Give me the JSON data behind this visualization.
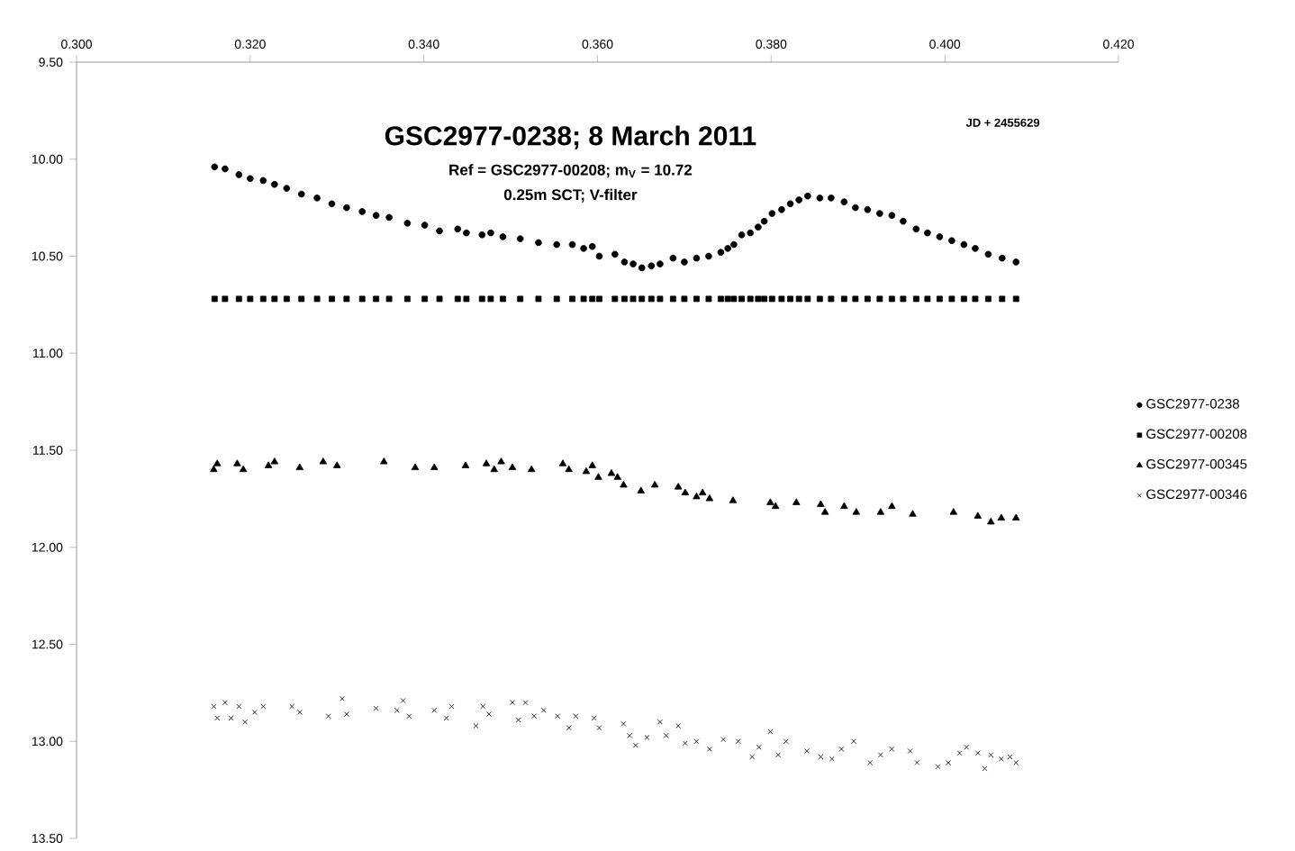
{
  "chart_data": {
    "type": "scatter",
    "title": "GSC2977-0238;  8 March 2011",
    "subtitle": "Ref = GSC2977-00208;  m$_{V}$ = 10.72",
    "annotations": [
      "0.25m SCT;  V-filter"
    ],
    "xlabel": "JD + 2455629",
    "xlim": [
      0.3,
      0.42
    ],
    "xticks": [
      {
        "value": 0.3,
        "label": "0.300"
      },
      {
        "value": 0.32,
        "label": "0.320"
      },
      {
        "value": 0.34,
        "label": "0.340"
      },
      {
        "value": 0.36,
        "label": "0.360"
      },
      {
        "value": 0.38,
        "label": "0.380"
      },
      {
        "value": 0.4,
        "label": "0.400"
      },
      {
        "value": 0.42,
        "label": "0.420"
      }
    ],
    "ylim": [
      13.5,
      9.5
    ],
    "yticks": [
      {
        "value": 9.5,
        "label": "9.50"
      },
      {
        "value": 10,
        "label": "10.00"
      },
      {
        "value": 10.5,
        "label": "10.50"
      },
      {
        "value": 11,
        "label": "11.00"
      },
      {
        "value": 11.5,
        "label": "11.50"
      },
      {
        "value": 12,
        "label": "12.00"
      },
      {
        "value": 12.5,
        "label": "12.50"
      },
      {
        "value": 13,
        "label": "13.00"
      },
      {
        "value": 13.5,
        "label": "13.50"
      }
    ],
    "grid": false,
    "legend": "right",
    "series": [
      {
        "name": "GSC2977-0238",
        "color": "#000000",
        "marker": "circle",
        "x": [
          0.3159,
          0.3171,
          0.3187,
          0.32,
          0.3215,
          0.3228,
          0.3242,
          0.3259,
          0.3277,
          0.3294,
          0.3311,
          0.3329,
          0.3345,
          0.336,
          0.3381,
          0.3401,
          0.3418,
          0.3439,
          0.3449,
          0.3467,
          0.3477,
          0.3491,
          0.3511,
          0.3532,
          0.3553,
          0.3571,
          0.3584,
          0.3594,
          0.3602,
          0.362,
          0.3631,
          0.3641,
          0.3651,
          0.3662,
          0.3672,
          0.3687,
          0.37,
          0.3714,
          0.3728,
          0.3742,
          0.375,
          0.3757,
          0.3766,
          0.3776,
          0.3785,
          0.3792,
          0.3801,
          0.3812,
          0.3822,
          0.3832,
          0.3842,
          0.3856,
          0.3869,
          0.3884,
          0.3897,
          0.3911,
          0.3925,
          0.3939,
          0.3952,
          0.3967,
          0.398,
          0.3994,
          0.4008,
          0.4022,
          0.4035,
          0.405,
          0.4066,
          0.4082
        ],
        "values": [
          10.04,
          10.05,
          10.08,
          10.1,
          10.11,
          10.13,
          10.15,
          10.18,
          10.2,
          10.23,
          10.25,
          10.27,
          10.29,
          10.3,
          10.33,
          10.34,
          10.37,
          10.36,
          10.38,
          10.39,
          10.38,
          10.4,
          10.41,
          10.43,
          10.44,
          10.44,
          10.46,
          10.45,
          10.5,
          10.49,
          10.53,
          10.54,
          10.56,
          10.55,
          10.54,
          10.51,
          10.53,
          10.51,
          10.5,
          10.48,
          10.46,
          10.44,
          10.39,
          10.38,
          10.35,
          10.32,
          10.28,
          10.26,
          10.23,
          10.21,
          10.19,
          10.2,
          10.2,
          10.22,
          10.25,
          10.26,
          10.28,
          10.29,
          10.32,
          10.36,
          10.38,
          10.4,
          10.42,
          10.44,
          10.46,
          10.49,
          10.51,
          10.53
        ]
      },
      {
        "name": "GSC2977-00208",
        "color": "#000000",
        "marker": "square",
        "x": [
          0.3159,
          0.3171,
          0.3187,
          0.32,
          0.3215,
          0.3228,
          0.3242,
          0.3259,
          0.3277,
          0.3294,
          0.3311,
          0.3329,
          0.3345,
          0.336,
          0.3381,
          0.3401,
          0.3418,
          0.3439,
          0.3449,
          0.3467,
          0.3477,
          0.3491,
          0.3511,
          0.3532,
          0.3553,
          0.3571,
          0.3584,
          0.3594,
          0.3602,
          0.362,
          0.3631,
          0.3641,
          0.3651,
          0.3662,
          0.3672,
          0.3687,
          0.37,
          0.3714,
          0.3728,
          0.3742,
          0.375,
          0.3757,
          0.3766,
          0.3776,
          0.3785,
          0.3792,
          0.3801,
          0.3812,
          0.3822,
          0.3832,
          0.3842,
          0.3856,
          0.3869,
          0.3884,
          0.3897,
          0.3911,
          0.3925,
          0.3939,
          0.3952,
          0.3967,
          0.398,
          0.3994,
          0.4008,
          0.4022,
          0.4035,
          0.405,
          0.4066,
          0.4082
        ],
        "values": [
          10.72,
          10.72,
          10.72,
          10.72,
          10.72,
          10.72,
          10.72,
          10.72,
          10.72,
          10.72,
          10.72,
          10.72,
          10.72,
          10.72,
          10.72,
          10.72,
          10.72,
          10.72,
          10.72,
          10.72,
          10.72,
          10.72,
          10.72,
          10.72,
          10.72,
          10.72,
          10.72,
          10.72,
          10.72,
          10.72,
          10.72,
          10.72,
          10.72,
          10.72,
          10.72,
          10.72,
          10.72,
          10.72,
          10.72,
          10.72,
          10.72,
          10.72,
          10.72,
          10.72,
          10.72,
          10.72,
          10.72,
          10.72,
          10.72,
          10.72,
          10.72,
          10.72,
          10.72,
          10.72,
          10.72,
          10.72,
          10.72,
          10.72,
          10.72,
          10.72,
          10.72,
          10.72,
          10.72,
          10.72,
          10.72,
          10.72,
          10.72,
          10.72
        ]
      },
      {
        "name": "GSC2977-00345",
        "color": "#000000",
        "marker": "triangle",
        "x": [
          0.3158,
          0.3162,
          0.3185,
          0.3192,
          0.3221,
          0.3228,
          0.3257,
          0.3284,
          0.33,
          0.3354,
          0.339,
          0.3412,
          0.3448,
          0.3472,
          0.3481,
          0.3489,
          0.3502,
          0.3524,
          0.356,
          0.3567,
          0.3587,
          0.3594,
          0.3601,
          0.3616,
          0.3623,
          0.363,
          0.365,
          0.3666,
          0.3693,
          0.3701,
          0.3714,
          0.3721,
          0.3729,
          0.3756,
          0.3799,
          0.3805,
          0.3829,
          0.3857,
          0.3862,
          0.3884,
          0.3898,
          0.3926,
          0.3939,
          0.3963,
          0.401,
          0.4038,
          0.4053,
          0.4065,
          0.4082
        ],
        "values": [
          11.6,
          11.57,
          11.57,
          11.6,
          11.58,
          11.56,
          11.59,
          11.56,
          11.58,
          11.56,
          11.59,
          11.59,
          11.58,
          11.57,
          11.6,
          11.56,
          11.59,
          11.6,
          11.57,
          11.6,
          11.61,
          11.58,
          11.64,
          11.62,
          11.64,
          11.68,
          11.71,
          11.68,
          11.69,
          11.72,
          11.74,
          11.72,
          11.75,
          11.76,
          11.77,
          11.79,
          11.77,
          11.78,
          11.82,
          11.79,
          11.82,
          11.82,
          11.79,
          11.83,
          11.82,
          11.84,
          11.87,
          11.85,
          11.85
        ]
      },
      {
        "name": "GSC2977-00346",
        "color": "#000000",
        "marker": "cross",
        "x": [
          0.3158,
          0.3162,
          0.3171,
          0.3178,
          0.3187,
          0.3194,
          0.3205,
          0.3215,
          0.3248,
          0.3257,
          0.329,
          0.3306,
          0.3311,
          0.3345,
          0.3369,
          0.3376,
          0.3383,
          0.3412,
          0.3426,
          0.3432,
          0.346,
          0.3468,
          0.3475,
          0.3502,
          0.3509,
          0.3517,
          0.3527,
          0.3538,
          0.3554,
          0.3567,
          0.3575,
          0.3596,
          0.3602,
          0.363,
          0.3637,
          0.3644,
          0.3657,
          0.3672,
          0.3679,
          0.3693,
          0.3701,
          0.3714,
          0.3729,
          0.3745,
          0.3762,
          0.3778,
          0.3786,
          0.3799,
          0.3808,
          0.3817,
          0.3841,
          0.3857,
          0.387,
          0.3881,
          0.3895,
          0.3914,
          0.3926,
          0.3939,
          0.396,
          0.3968,
          0.3992,
          0.4004,
          0.4017,
          0.4025,
          0.4038,
          0.4046,
          0.4053,
          0.4065,
          0.4075,
          0.4082
        ],
        "values": [
          12.82,
          12.88,
          12.8,
          12.88,
          12.82,
          12.9,
          12.85,
          12.82,
          12.82,
          12.85,
          12.87,
          12.78,
          12.86,
          12.83,
          12.84,
          12.79,
          12.87,
          12.84,
          12.88,
          12.82,
          12.92,
          12.82,
          12.86,
          12.8,
          12.89,
          12.8,
          12.87,
          12.84,
          12.87,
          12.93,
          12.87,
          12.88,
          12.93,
          12.91,
          12.97,
          13.02,
          12.98,
          12.9,
          12.97,
          12.92,
          13.01,
          13.0,
          13.04,
          12.99,
          13.0,
          13.08,
          13.03,
          12.95,
          13.07,
          13.0,
          13.05,
          13.08,
          13.09,
          13.04,
          13.0,
          13.11,
          13.07,
          13.04,
          13.05,
          13.11,
          13.13,
          13.11,
          13.06,
          13.03,
          13.06,
          13.14,
          13.07,
          13.09,
          13.08,
          13.11
        ]
      }
    ]
  }
}
